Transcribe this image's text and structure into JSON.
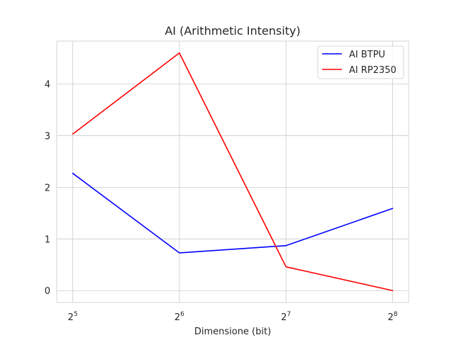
{
  "chart_data": {
    "type": "line",
    "title": "AI (Arithmetic Intensity)",
    "xlabel": "Dimensione (bit)",
    "ylabel": "",
    "x_scale": "log2",
    "x": [
      32,
      64,
      128,
      256
    ],
    "x_tick_labels": [
      {
        "base": "2",
        "exp": "5"
      },
      {
        "base": "2",
        "exp": "6"
      },
      {
        "base": "2",
        "exp": "7"
      },
      {
        "base": "2",
        "exp": "8"
      }
    ],
    "y_ticks": [
      "0",
      "1",
      "2",
      "3",
      "4"
    ],
    "ylim": [
      -0.23,
      4.83
    ],
    "grid": true,
    "legend_position": "top-right",
    "series": [
      {
        "name": "AI BTPU",
        "color": "#0000ff",
        "values": [
          2.27,
          0.73,
          0.87,
          1.59
        ]
      },
      {
        "name": "AI RP2350",
        "color": "#ff0000",
        "values": [
          3.03,
          4.6,
          0.46,
          0.0
        ]
      }
    ]
  }
}
